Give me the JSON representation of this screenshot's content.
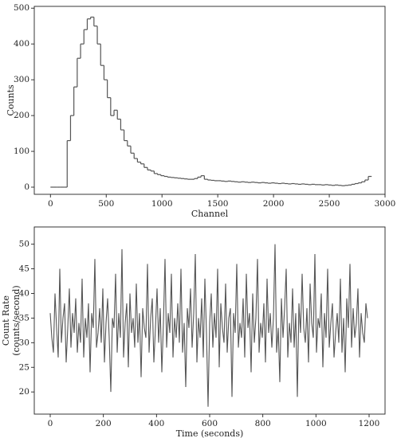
{
  "chart_data": [
    {
      "type": "histogram",
      "xlabel": "Channel",
      "ylabel": [
        "Counts"
      ],
      "color": "#555555",
      "bins": [
        0,
        30,
        60,
        90,
        120,
        150,
        180,
        210,
        240,
        270,
        300,
        330,
        360,
        390,
        420,
        450,
        480,
        510,
        540,
        570,
        600,
        630,
        660,
        690,
        720,
        750,
        780,
        810,
        840,
        870,
        900,
        930,
        960,
        990,
        1020,
        1050,
        1080,
        1110,
        1140,
        1170,
        1200,
        1230,
        1260,
        1290,
        1320,
        1350,
        1380,
        1410,
        1440,
        1470,
        1500,
        1530,
        1560,
        1590,
        1620,
        1650,
        1680,
        1710,
        1740,
        1770,
        1800,
        1830,
        1860,
        1890,
        1920,
        1950,
        1980,
        2010,
        2040,
        2070,
        2100,
        2130,
        2160,
        2190,
        2220,
        2250,
        2280,
        2310,
        2340,
        2370,
        2400,
        2430,
        2460,
        2490,
        2520,
        2550,
        2580,
        2610,
        2640,
        2670,
        2700,
        2730,
        2760,
        2790,
        2820,
        2850,
        2880
      ],
      "counts": [
        0,
        0,
        0,
        0,
        0,
        130,
        200,
        280,
        360,
        400,
        440,
        470,
        475,
        450,
        400,
        340,
        300,
        250,
        200,
        215,
        190,
        160,
        130,
        115,
        95,
        80,
        70,
        65,
        55,
        48,
        45,
        38,
        35,
        32,
        30,
        28,
        27,
        26,
        25,
        24,
        23,
        22,
        22,
        24,
        28,
        32,
        22,
        20,
        19,
        18,
        18,
        17,
        16,
        17,
        16,
        15,
        14,
        15,
        14,
        13,
        14,
        13,
        12,
        13,
        12,
        11,
        12,
        11,
        10,
        11,
        10,
        9,
        10,
        9,
        8,
        9,
        8,
        7,
        8,
        7,
        7,
        6,
        7,
        6,
        5,
        6,
        5,
        4,
        5,
        6,
        8,
        10,
        12,
        15,
        20,
        30
      ],
      "xlim": [
        -145,
        3000
      ],
      "xticks": [
        0,
        500,
        1000,
        1500,
        2000,
        2500,
        3000
      ],
      "ylim": [
        -20,
        505
      ],
      "yticks": [
        0,
        100,
        200,
        300,
        400,
        500
      ]
    },
    {
      "type": "line",
      "xlabel": "Time (seconds)",
      "ylabel": [
        "Count Rate",
        "(counts/second)"
      ],
      "color": "#555555",
      "x": [
        0,
        6,
        12,
        18,
        24,
        30,
        36,
        42,
        48,
        54,
        60,
        66,
        72,
        78,
        84,
        90,
        96,
        102,
        108,
        114,
        120,
        126,
        132,
        138,
        144,
        150,
        156,
        162,
        168,
        174,
        180,
        186,
        192,
        198,
        204,
        210,
        216,
        222,
        228,
        234,
        240,
        246,
        252,
        258,
        264,
        270,
        276,
        282,
        288,
        294,
        300,
        306,
        312,
        318,
        324,
        330,
        336,
        342,
        348,
        354,
        360,
        366,
        372,
        378,
        384,
        390,
        396,
        402,
        408,
        414,
        420,
        426,
        432,
        438,
        444,
        450,
        456,
        462,
        468,
        474,
        480,
        486,
        492,
        498,
        504,
        510,
        516,
        522,
        528,
        534,
        540,
        546,
        552,
        558,
        564,
        570,
        576,
        582,
        588,
        594,
        600,
        606,
        612,
        618,
        624,
        630,
        636,
        642,
        648,
        654,
        660,
        666,
        672,
        678,
        684,
        690,
        696,
        702,
        708,
        714,
        720,
        726,
        732,
        738,
        744,
        750,
        756,
        762,
        768,
        774,
        780,
        786,
        792,
        798,
        804,
        810,
        816,
        822,
        828,
        834,
        840,
        846,
        852,
        858,
        864,
        870,
        876,
        882,
        888,
        894,
        900,
        906,
        912,
        918,
        924,
        930,
        936,
        942,
        948,
        954,
        960,
        966,
        972,
        978,
        984,
        990,
        996,
        1002,
        1008,
        1014,
        1020,
        1026,
        1032,
        1038,
        1044,
        1050,
        1056,
        1062,
        1068,
        1074,
        1080,
        1086,
        1092,
        1098,
        1104,
        1110,
        1116,
        1122,
        1128,
        1134,
        1140,
        1146,
        1152,
        1158,
        1164,
        1170,
        1176,
        1182,
        1188,
        1194
      ],
      "values": [
        36,
        31,
        28,
        40,
        33,
        27,
        45,
        30,
        35,
        38,
        26,
        33,
        41,
        29,
        36,
        32,
        39,
        28,
        34,
        30,
        43,
        27,
        35,
        31,
        38,
        24,
        36,
        33,
        47,
        29,
        32,
        37,
        30,
        41,
        26,
        34,
        39,
        31,
        20,
        35,
        33,
        44,
        28,
        36,
        31,
        49,
        27,
        34,
        38,
        25,
        40,
        32,
        35,
        29,
        42,
        30,
        36,
        23,
        37,
        33,
        31,
        46,
        28,
        35,
        39,
        26,
        33,
        41,
        30,
        37,
        24,
        34,
        47,
        29,
        36,
        32,
        44,
        27,
        35,
        31,
        38,
        30,
        45,
        28,
        34,
        21,
        37,
        33,
        41,
        29,
        36,
        48,
        26,
        35,
        31,
        39,
        27,
        43,
        32,
        17,
        34,
        40,
        29,
        36,
        31,
        45,
        25,
        38,
        33,
        30,
        42,
        28,
        35,
        37,
        19,
        36,
        32,
        46,
        29,
        34,
        31,
        39,
        27,
        44,
        33,
        36,
        24,
        40,
        30,
        35,
        47,
        28,
        34,
        31,
        38,
        26,
        43,
        32,
        36,
        29,
        35,
        50,
        28,
        33,
        22,
        39,
        31,
        37,
        45,
        27,
        34,
        30,
        41,
        29,
        36,
        19,
        38,
        32,
        44,
        33,
        30,
        37,
        26,
        42,
        34,
        31,
        48,
        28,
        35,
        33,
        40,
        25,
        36,
        31,
        45,
        29,
        34,
        38,
        27,
        32,
        36,
        30,
        43,
        28,
        35,
        24,
        39,
        33,
        46,
        29,
        37,
        31,
        34,
        41,
        27,
        36,
        32,
        30,
        38,
        35
      ],
      "xlim": [
        -60,
        1260
      ],
      "xticks": [
        0,
        200,
        400,
        600,
        800,
        1000,
        1200
      ],
      "ylim": [
        15.5,
        53.5
      ],
      "yticks": [
        20,
        25,
        30,
        35,
        40,
        45,
        50
      ]
    }
  ]
}
